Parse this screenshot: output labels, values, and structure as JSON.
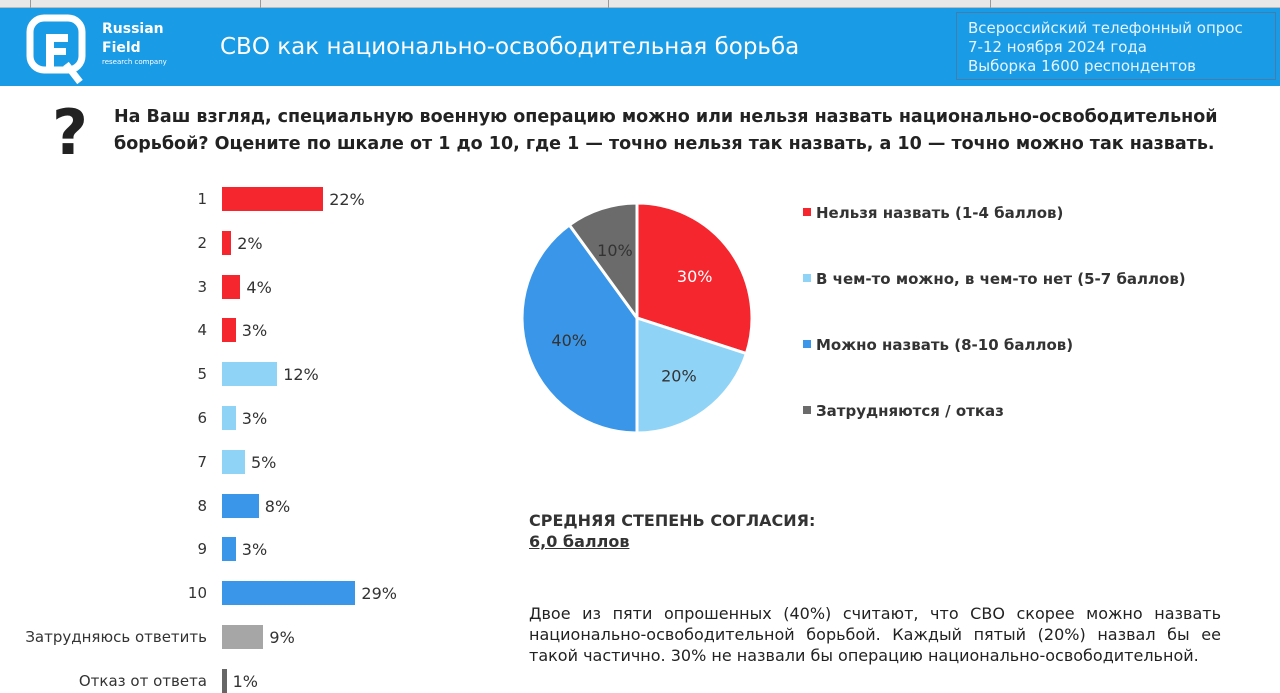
{
  "header": {
    "brand_name_line1": "Russian",
    "brand_name_line2": "Field",
    "brand_tagline": "research company",
    "title": "СВО как национально-освободительная борьба",
    "info_lines": [
      "Всероссийский телефонный опрос",
      "7-12 ноября 2024 года",
      "Выборка 1600 респондентов"
    ]
  },
  "question": "На Ваш взгляд, специальную военную операцию можно или нельзя назвать национально-освободительной борьбой? Оцените по шкале от 1 до 10, где 1 — точно нельзя так назвать, а 10 — точно можно так назвать.",
  "colors": {
    "brand": "#1a9be6",
    "red": "#f5262d",
    "light_blue": "#8fd3f7",
    "blue": "#3a96e8",
    "gray": "#a6a6a6",
    "dark_gray": "#666666"
  },
  "chart_data": [
    {
      "type": "bar",
      "orientation": "horizontal",
      "categories": [
        "1",
        "2",
        "3",
        "4",
        "5",
        "6",
        "7",
        "8",
        "9",
        "10",
        "Затрудняюсь ответить",
        "Отказ от ответа"
      ],
      "values": [
        22,
        2,
        4,
        3,
        12,
        3,
        5,
        8,
        3,
        29,
        9,
        1
      ],
      "labels": [
        "22%",
        "2%",
        "4%",
        "3%",
        "12%",
        "3%",
        "5%",
        "8%",
        "3%",
        "29%",
        "9%",
        "1%"
      ],
      "color_groups": [
        "red",
        "red",
        "red",
        "red",
        "light_blue",
        "light_blue",
        "light_blue",
        "blue",
        "blue",
        "blue",
        "gray",
        "dark_gray"
      ],
      "unit": "%"
    },
    {
      "type": "pie",
      "slices": [
        {
          "name": "Нельзя назвать (1-4 баллов)",
          "value": 30,
          "label": "30%",
          "color": "#f5262d"
        },
        {
          "name": "В чем-то можно, в чем-то нет (5-7 баллов)",
          "value": 20,
          "label": "20%",
          "color": "#8fd3f7"
        },
        {
          "name": "Можно назвать (8-10 баллов)",
          "value": 40,
          "label": "40%",
          "color": "#3a96e8"
        },
        {
          "name": "Затрудняются / отказ",
          "value": 10,
          "label": "10%",
          "color": "#6b6b6b"
        }
      ],
      "legend": "right"
    }
  ],
  "average": {
    "title": "СРЕДНЯЯ СТЕПЕНЬ СОГЛАСИЯ:",
    "value": "6,0 баллов"
  },
  "description": "Двое из пяти опрошенных (40%) считают, что СВО скорее можно назвать национально-освободительной борьбой. Каждый пятый (20%) назвал бы ее такой частично. 30% не назвали бы операцию национально-освободительной."
}
